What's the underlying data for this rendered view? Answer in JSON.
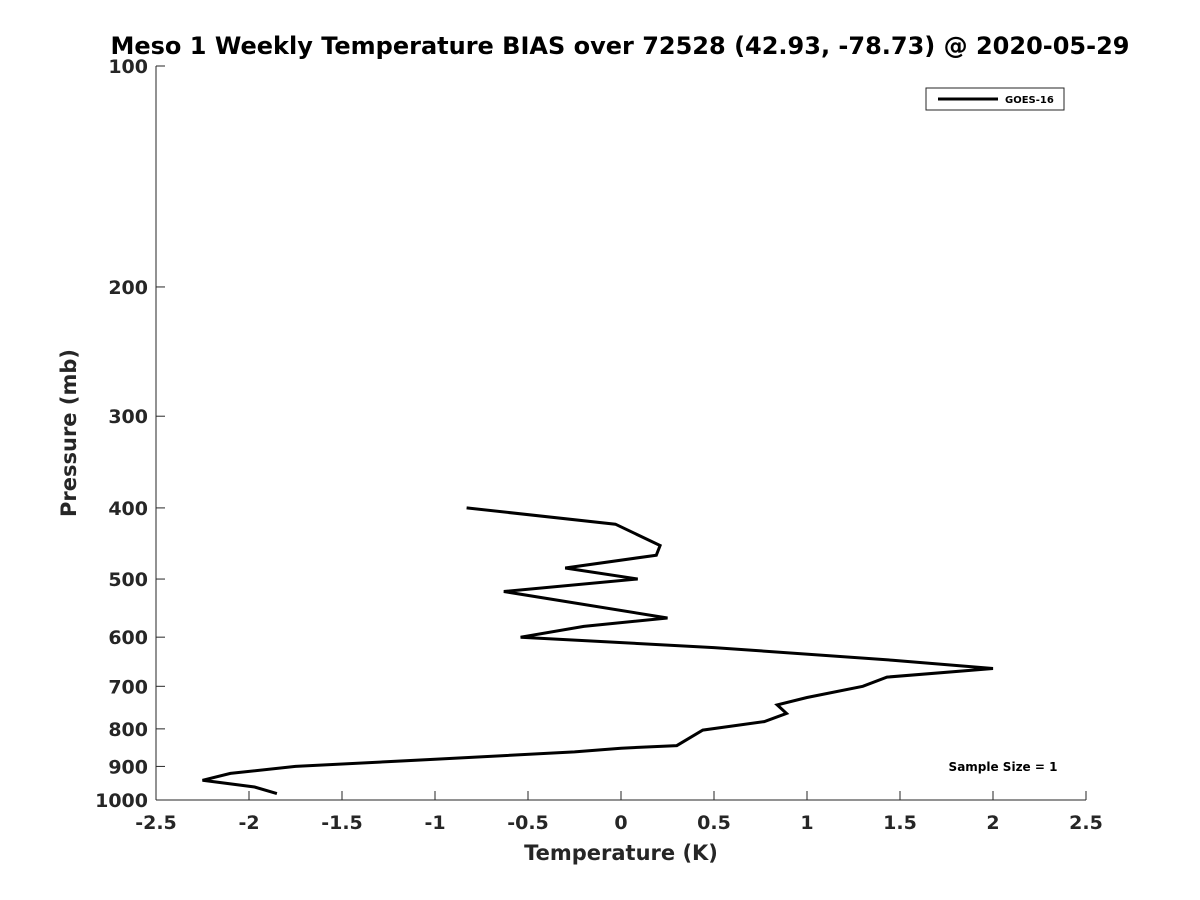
{
  "chart_data": {
    "type": "line",
    "title": "Meso 1 Weekly Temperature BIAS over 72528 (42.93, -78.73) @ 2020-05-29",
    "xlabel": "Temperature (K)",
    "ylabel": "Pressure (mb)",
    "xlim": [
      -2.5,
      2.5
    ],
    "ylim": [
      100,
      1000
    ],
    "y_scale": "log",
    "y_reversed": true,
    "x_ticks": [
      -2.5,
      -2,
      -1.5,
      -1,
      -0.5,
      0,
      0.5,
      1,
      1.5,
      2,
      2.5
    ],
    "x_tick_labels": [
      "-2.5",
      "-2",
      "-1.5",
      "-1",
      "-0.5",
      "0",
      "0.5",
      "1",
      "1.5",
      "2",
      "2.5"
    ],
    "y_ticks": [
      100,
      200,
      300,
      400,
      500,
      600,
      700,
      800,
      900,
      1000
    ],
    "y_tick_labels": [
      "100",
      "200",
      "300",
      "400",
      "500",
      "600",
      "700",
      "800",
      "900",
      "1000"
    ],
    "grid": false,
    "legend_position": "top-right",
    "series": [
      {
        "name": "GOES-16",
        "color": "#000000",
        "points": [
          {
            "x": -0.83,
            "p": 400
          },
          {
            "x": -0.03,
            "p": 421
          },
          {
            "x": 0.21,
            "p": 450
          },
          {
            "x": 0.19,
            "p": 464
          },
          {
            "x": -0.3,
            "p": 483
          },
          {
            "x": 0.09,
            "p": 500
          },
          {
            "x": -0.63,
            "p": 520
          },
          {
            "x": 0.25,
            "p": 565
          },
          {
            "x": -0.2,
            "p": 580
          },
          {
            "x": -0.54,
            "p": 600
          },
          {
            "x": 0.5,
            "p": 620
          },
          {
            "x": 1.46,
            "p": 645
          },
          {
            "x": 2.0,
            "p": 662
          },
          {
            "x": 1.43,
            "p": 680
          },
          {
            "x": 1.3,
            "p": 700
          },
          {
            "x": 1.0,
            "p": 725
          },
          {
            "x": 0.84,
            "p": 742
          },
          {
            "x": 0.89,
            "p": 762
          },
          {
            "x": 0.77,
            "p": 782
          },
          {
            "x": 0.44,
            "p": 803
          },
          {
            "x": 0.38,
            "p": 820
          },
          {
            "x": 0.3,
            "p": 843
          },
          {
            "x": 0.0,
            "p": 850
          },
          {
            "x": -0.25,
            "p": 860
          },
          {
            "x": -1.0,
            "p": 880
          },
          {
            "x": -1.75,
            "p": 900
          },
          {
            "x": -2.1,
            "p": 920
          },
          {
            "x": -2.25,
            "p": 940
          },
          {
            "x": -1.97,
            "p": 960
          },
          {
            "x": -1.85,
            "p": 980
          }
        ]
      }
    ],
    "annotation": "Sample Size = 1"
  }
}
